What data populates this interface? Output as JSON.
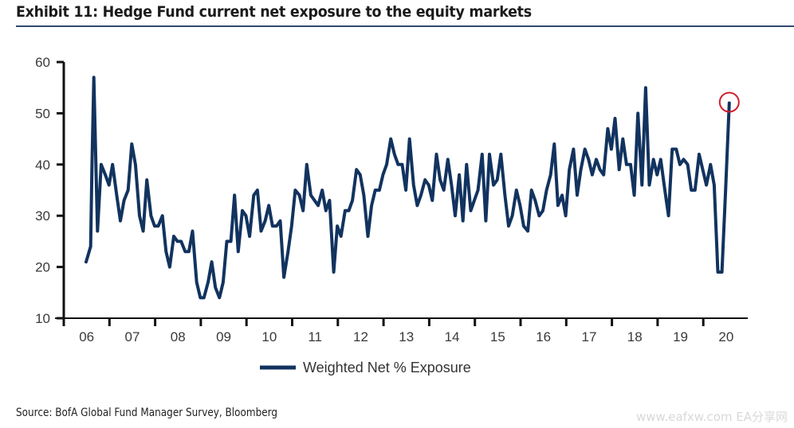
{
  "header": {
    "title": "Exhibit 11: Hedge Fund current net exposure to the equity markets"
  },
  "footer": {
    "source": "Source: BofA Global Fund Manager Survey, Bloomberg",
    "watermark": "www.eafxw.com  EA分享网"
  },
  "colors": {
    "series": "#12335f",
    "axis": "#111111",
    "highlight": "#d0202a",
    "title_rule": "#2e4a6e"
  },
  "chart_data": {
    "type": "line",
    "title": "Exhibit 11: Hedge Fund current net exposure to the equity markets",
    "xlabel": "",
    "ylabel": "",
    "ylim": [
      10,
      60
    ],
    "yticks": [
      10,
      20,
      30,
      40,
      50,
      60
    ],
    "ytick_labels": [
      "10",
      "20",
      "30",
      "40",
      "50",
      "60"
    ],
    "xlim": [
      2006,
      2020.95
    ],
    "xtick_labels": [
      "06",
      "07",
      "08",
      "09",
      "10",
      "11",
      "12",
      "13",
      "14",
      "15",
      "16",
      "17",
      "18",
      "19",
      "20"
    ],
    "grid": false,
    "legend": {
      "position": "bottom-center",
      "entries": [
        "Weighted Net % Exposure"
      ]
    },
    "annotations": [
      {
        "type": "circle",
        "label": "latest reading",
        "x": 2020.33,
        "y": 52
      }
    ],
    "series": [
      {
        "name": "Weighted Net % Exposure",
        "points": [
          [
            2006.0,
            21
          ],
          [
            2006.1,
            24
          ],
          [
            2006.13,
            40
          ],
          [
            2006.17,
            57
          ],
          [
            2006.25,
            27
          ],
          [
            2006.33,
            40
          ],
          [
            2006.42,
            38
          ],
          [
            2006.5,
            36
          ],
          [
            2006.58,
            40
          ],
          [
            2006.67,
            34
          ],
          [
            2006.75,
            29
          ],
          [
            2006.83,
            33
          ],
          [
            2006.92,
            35
          ],
          [
            2007.0,
            44
          ],
          [
            2007.08,
            40
          ],
          [
            2007.17,
            30
          ],
          [
            2007.25,
            27
          ],
          [
            2007.33,
            37
          ],
          [
            2007.42,
            30
          ],
          [
            2007.5,
            28
          ],
          [
            2007.58,
            28
          ],
          [
            2007.67,
            30
          ],
          [
            2007.75,
            23
          ],
          [
            2007.83,
            20
          ],
          [
            2007.92,
            26
          ],
          [
            2008.0,
            25
          ],
          [
            2008.08,
            25
          ],
          [
            2008.17,
            23
          ],
          [
            2008.25,
            23
          ],
          [
            2008.33,
            27
          ],
          [
            2008.42,
            17
          ],
          [
            2008.5,
            14
          ],
          [
            2008.58,
            14
          ],
          [
            2008.67,
            17
          ],
          [
            2008.75,
            21
          ],
          [
            2008.83,
            16
          ],
          [
            2008.92,
            14
          ],
          [
            2009.0,
            17
          ],
          [
            2009.08,
            25
          ],
          [
            2009.17,
            25
          ],
          [
            2009.25,
            34
          ],
          [
            2009.33,
            23
          ],
          [
            2009.42,
            31
          ],
          [
            2009.5,
            30
          ],
          [
            2009.58,
            26
          ],
          [
            2009.67,
            34
          ],
          [
            2009.75,
            35
          ],
          [
            2009.83,
            27
          ],
          [
            2009.92,
            29
          ],
          [
            2010.0,
            32
          ],
          [
            2010.08,
            28
          ],
          [
            2010.17,
            28
          ],
          [
            2010.25,
            29
          ],
          [
            2010.33,
            18
          ],
          [
            2010.42,
            23
          ],
          [
            2010.5,
            28
          ],
          [
            2010.58,
            35
          ],
          [
            2010.67,
            34
          ],
          [
            2010.75,
            31
          ],
          [
            2010.83,
            40
          ],
          [
            2010.92,
            34
          ],
          [
            2011.0,
            33
          ],
          [
            2011.08,
            32
          ],
          [
            2011.17,
            35
          ],
          [
            2011.25,
            31
          ],
          [
            2011.33,
            33
          ],
          [
            2011.42,
            19
          ],
          [
            2011.5,
            28
          ],
          [
            2011.58,
            26
          ],
          [
            2011.67,
            31
          ],
          [
            2011.75,
            31
          ],
          [
            2011.83,
            33
          ],
          [
            2011.92,
            39
          ],
          [
            2012.0,
            38
          ],
          [
            2012.08,
            34
          ],
          [
            2012.17,
            26
          ],
          [
            2012.25,
            32
          ],
          [
            2012.33,
            35
          ],
          [
            2012.42,
            35
          ],
          [
            2012.5,
            38
          ],
          [
            2012.58,
            40
          ],
          [
            2012.67,
            45
          ],
          [
            2012.75,
            42
          ],
          [
            2012.83,
            40
          ],
          [
            2012.92,
            40
          ],
          [
            2013.0,
            35
          ],
          [
            2013.08,
            45
          ],
          [
            2013.17,
            36
          ],
          [
            2013.25,
            32
          ],
          [
            2013.33,
            34
          ],
          [
            2013.42,
            37
          ],
          [
            2013.5,
            36
          ],
          [
            2013.58,
            33
          ],
          [
            2013.67,
            42
          ],
          [
            2013.75,
            37
          ],
          [
            2013.83,
            35
          ],
          [
            2013.92,
            41
          ],
          [
            2014.0,
            36
          ],
          [
            2014.08,
            30
          ],
          [
            2014.17,
            38
          ],
          [
            2014.25,
            29
          ],
          [
            2014.33,
            40
          ],
          [
            2014.42,
            31
          ],
          [
            2014.5,
            33
          ],
          [
            2014.58,
            35
          ],
          [
            2014.67,
            42
          ],
          [
            2014.75,
            29
          ],
          [
            2014.83,
            42
          ],
          [
            2014.92,
            36
          ],
          [
            2015.0,
            37
          ],
          [
            2015.08,
            42
          ],
          [
            2015.17,
            34
          ],
          [
            2015.25,
            28
          ],
          [
            2015.33,
            30
          ],
          [
            2015.42,
            35
          ],
          [
            2015.5,
            32
          ],
          [
            2015.58,
            28
          ],
          [
            2015.67,
            27
          ],
          [
            2015.75,
            35
          ],
          [
            2015.83,
            33
          ],
          [
            2015.92,
            30
          ],
          [
            2016.0,
            31
          ],
          [
            2016.08,
            35
          ],
          [
            2016.17,
            38
          ],
          [
            2016.25,
            44
          ],
          [
            2016.33,
            32
          ],
          [
            2016.42,
            34
          ],
          [
            2016.5,
            30
          ],
          [
            2016.58,
            39
          ],
          [
            2016.67,
            43
          ],
          [
            2016.75,
            34
          ],
          [
            2016.83,
            39
          ],
          [
            2016.92,
            43
          ],
          [
            2017.0,
            41
          ],
          [
            2017.08,
            38
          ],
          [
            2017.17,
            41
          ],
          [
            2017.25,
            39
          ],
          [
            2017.33,
            38
          ],
          [
            2017.42,
            47
          ],
          [
            2017.5,
            43
          ],
          [
            2017.58,
            49
          ],
          [
            2017.67,
            39
          ],
          [
            2017.75,
            45
          ],
          [
            2017.83,
            40
          ],
          [
            2017.92,
            40
          ],
          [
            2018.0,
            34
          ],
          [
            2018.08,
            50
          ],
          [
            2018.17,
            36
          ],
          [
            2018.25,
            55
          ],
          [
            2018.33,
            36
          ],
          [
            2018.42,
            41
          ],
          [
            2018.5,
            38
          ],
          [
            2018.58,
            41
          ],
          [
            2018.67,
            35
          ],
          [
            2018.75,
            30
          ],
          [
            2018.83,
            43
          ],
          [
            2018.92,
            43
          ],
          [
            2019.0,
            40
          ],
          [
            2019.08,
            41
          ],
          [
            2019.17,
            40
          ],
          [
            2019.25,
            35
          ],
          [
            2019.33,
            35
          ],
          [
            2019.42,
            42
          ],
          [
            2019.5,
            39
          ],
          [
            2019.58,
            36
          ],
          [
            2019.67,
            40
          ],
          [
            2019.75,
            36
          ],
          [
            2019.83,
            19
          ],
          [
            2019.92,
            19
          ],
          [
            2020.0,
            35
          ],
          [
            2020.08,
            52
          ]
        ]
      }
    ]
  }
}
